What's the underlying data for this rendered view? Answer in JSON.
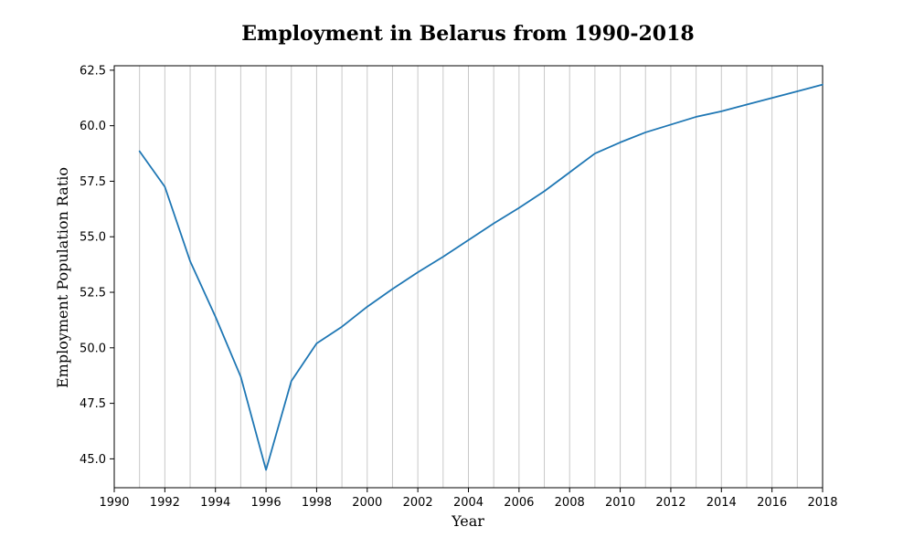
{
  "chart_data": {
    "type": "line",
    "title": "Employment in Belarus from 1990-2018",
    "xlabel": "Year",
    "ylabel": "Employment Population Ratio",
    "xlim": [
      1990,
      2018
    ],
    "ylim": [
      43.7,
      62.7
    ],
    "grid": "vertical",
    "line_color": "#1f77b4",
    "x_ticks": [
      1990,
      1992,
      1994,
      1996,
      1998,
      2000,
      2002,
      2004,
      2006,
      2008,
      2010,
      2012,
      2014,
      2016,
      2018
    ],
    "y_ticks": [
      "45.0",
      "47.5",
      "50.0",
      "52.5",
      "55.0",
      "57.5",
      "60.0",
      "62.5"
    ],
    "series": [
      {
        "x": [
          1991,
          1992,
          1993,
          1994,
          1995,
          1996,
          1997,
          1998,
          1999,
          2000,
          2001,
          2002,
          2003,
          2004,
          2005,
          2006,
          2007,
          2008,
          2009,
          2010,
          2011,
          2012,
          2013,
          2014,
          2015,
          2016,
          2017,
          2018
        ],
        "values": [
          58.85,
          57.25,
          53.9,
          51.4,
          48.7,
          44.5,
          48.5,
          50.2,
          50.95,
          51.85,
          52.65,
          53.4,
          54.1,
          54.85,
          55.6,
          56.3,
          57.05,
          57.9,
          58.75,
          59.25,
          59.7,
          60.05,
          60.4,
          60.65,
          60.95,
          61.25,
          61.55,
          61.85
        ]
      }
    ]
  }
}
